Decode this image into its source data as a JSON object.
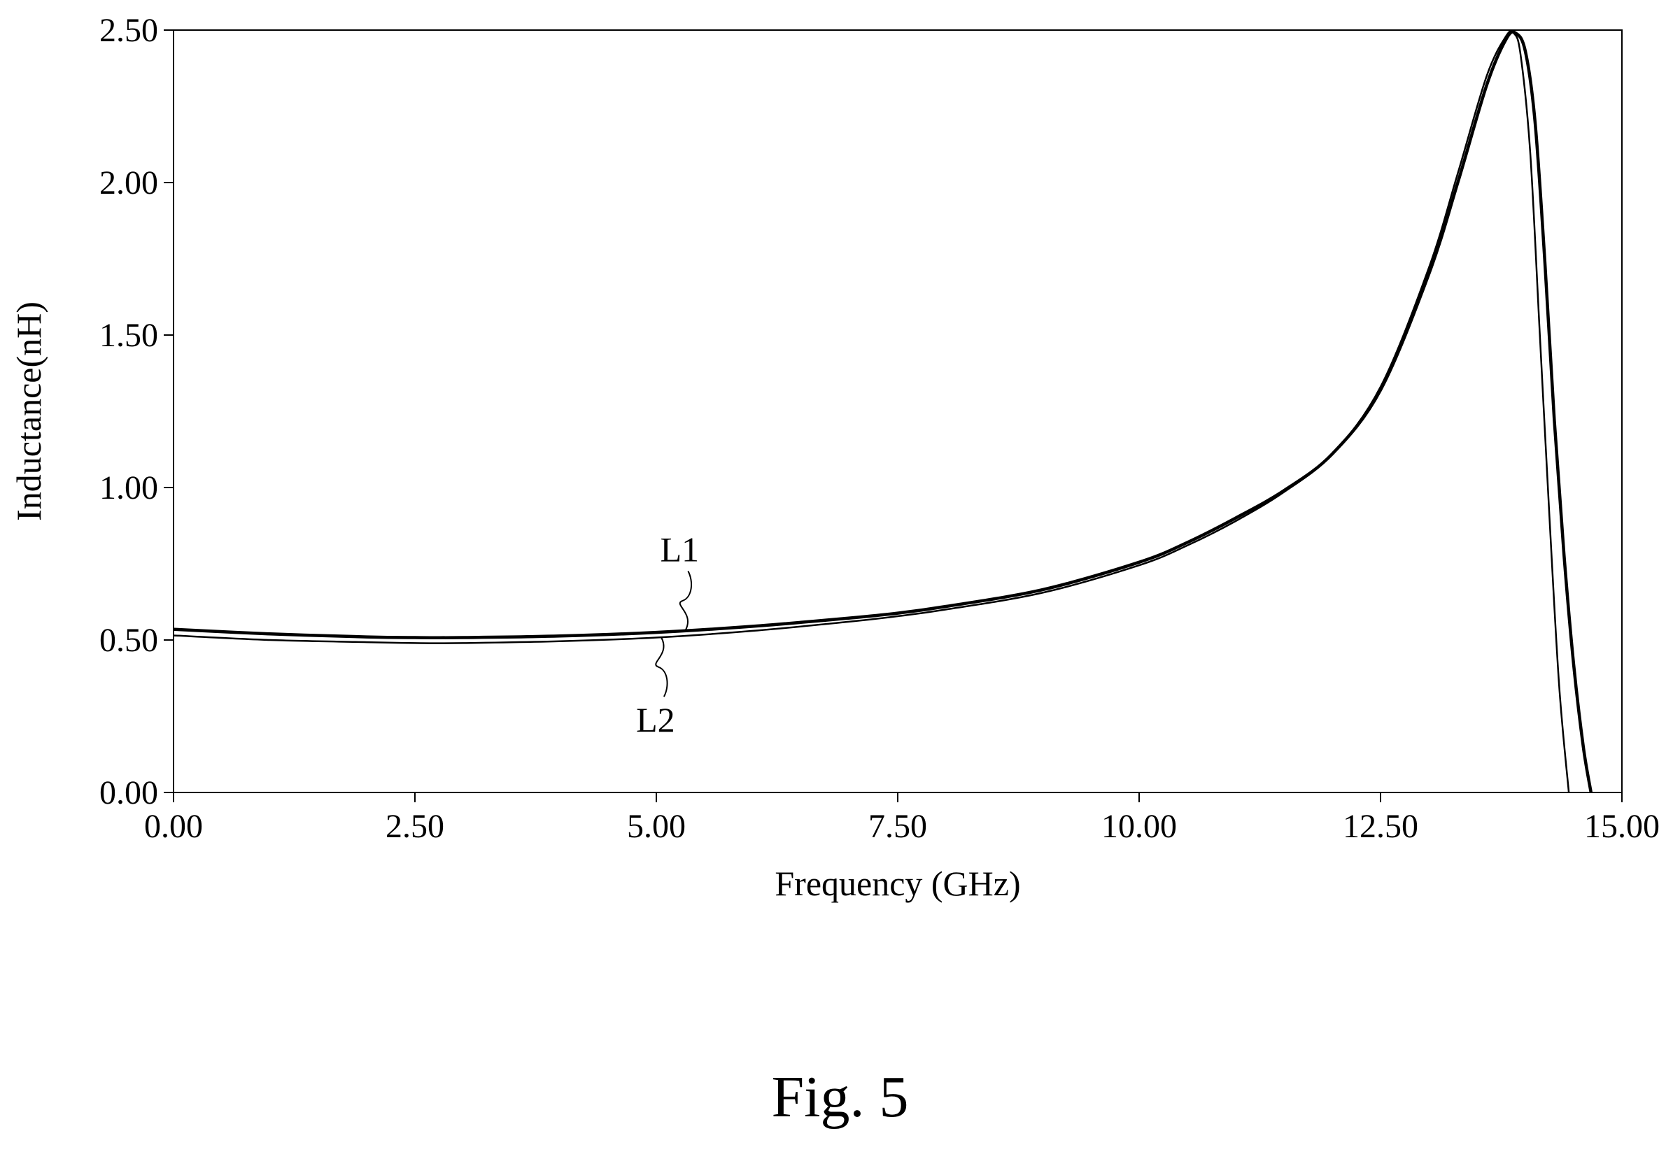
{
  "caption": "Fig. 5",
  "chart_data": {
    "type": "line",
    "title": "",
    "xlabel": "Frequency (GHz)",
    "ylabel": "Inductance(nH)",
    "xlim": [
      0,
      15
    ],
    "ylim": [
      0,
      2.5
    ],
    "xticks": [
      "0.00",
      "2.50",
      "5.00",
      "7.50",
      "10.00",
      "12.50",
      "15.00"
    ],
    "yticks": [
      "0.00",
      "0.50",
      "1.00",
      "1.50",
      "2.00",
      "2.50"
    ],
    "grid": false,
    "legend": "none",
    "series": [
      {
        "name": "L1",
        "color": "#000000",
        "x": [
          0,
          1,
          2,
          2.5,
          3,
          4,
          5,
          6,
          7,
          7.5,
          8,
          9,
          10,
          10.5,
          11,
          11.5,
          12,
          12.5,
          13,
          13.3,
          13.6,
          13.8,
          13.9,
          14.0,
          14.1,
          14.2,
          14.3,
          14.4,
          14.5,
          14.6,
          14.68
        ],
        "y": [
          0.535,
          0.52,
          0.51,
          0.508,
          0.508,
          0.513,
          0.525,
          0.545,
          0.572,
          0.588,
          0.61,
          0.665,
          0.755,
          0.82,
          0.9,
          0.99,
          1.11,
          1.32,
          1.7,
          2.0,
          2.32,
          2.47,
          2.49,
          2.43,
          2.2,
          1.75,
          1.22,
          0.78,
          0.42,
          0.15,
          0.0
        ]
      },
      {
        "name": "L2",
        "color": "#000000",
        "x": [
          0,
          1,
          2,
          2.5,
          3,
          4,
          5,
          6,
          7,
          7.5,
          8,
          9,
          10,
          10.5,
          11,
          11.5,
          12,
          12.5,
          13,
          13.3,
          13.6,
          13.8,
          13.88,
          13.95,
          14.05,
          14.15,
          14.25,
          14.35,
          14.45
        ],
        "y": [
          0.515,
          0.5,
          0.493,
          0.49,
          0.49,
          0.496,
          0.508,
          0.53,
          0.56,
          0.578,
          0.6,
          0.655,
          0.745,
          0.81,
          0.89,
          0.985,
          1.11,
          1.33,
          1.72,
          2.03,
          2.35,
          2.48,
          2.49,
          2.42,
          2.1,
          1.5,
          0.9,
          0.35,
          0.0
        ]
      }
    ]
  }
}
